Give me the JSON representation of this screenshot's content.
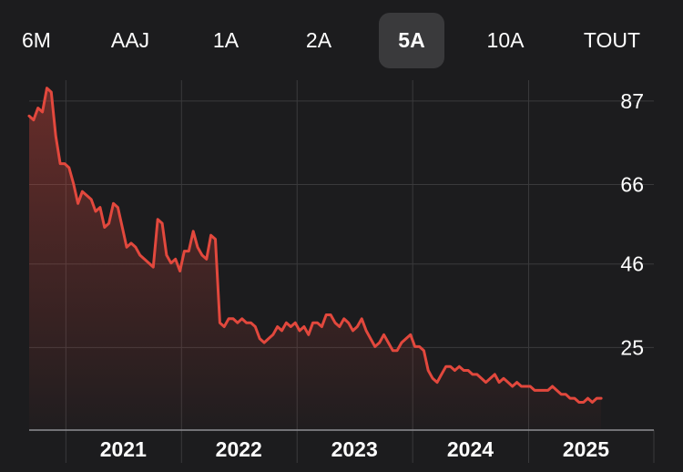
{
  "tabs": [
    {
      "label": "6M",
      "selected": false
    },
    {
      "label": "AAJ",
      "selected": false
    },
    {
      "label": "1A",
      "selected": false
    },
    {
      "label": "2A",
      "selected": false
    },
    {
      "label": "5A",
      "selected": true
    },
    {
      "label": "10A",
      "selected": false
    },
    {
      "label": "TOUT",
      "selected": false
    }
  ],
  "colors": {
    "background": "#1c1c1e",
    "line": "#e2483d",
    "grid": "#3a3a3c",
    "selected_tab": "#3a3a3c"
  },
  "chart_data": {
    "type": "area",
    "title": "",
    "xlabel": "",
    "ylabel": "",
    "ylim": [
      4,
      92
    ],
    "yticks": [
      87,
      66,
      46,
      25
    ],
    "xticks": [
      "2021",
      "2022",
      "2023",
      "2024",
      "2025"
    ],
    "xlim": [
      "2020-09-07",
      "2025-09-01"
    ],
    "grid": true,
    "series": [
      {
        "x": [
          "2020-09-07",
          "2020-09-21",
          "2020-10-05",
          "2020-10-19",
          "2020-11-02",
          "2020-11-16",
          "2020-11-30",
          "2020-12-14",
          "2020-12-28",
          "2021-01-11",
          "2021-01-25",
          "2021-02-08",
          "2021-02-22",
          "2021-03-08",
          "2021-03-22",
          "2021-04-05",
          "2021-04-19",
          "2021-05-03",
          "2021-05-17",
          "2021-05-31",
          "2021-06-14",
          "2021-06-28",
          "2021-07-12",
          "2021-07-26",
          "2021-08-09",
          "2021-08-23",
          "2021-09-06",
          "2021-09-20",
          "2021-10-04",
          "2021-10-18",
          "2021-11-01",
          "2021-11-15",
          "2021-11-29",
          "2021-12-13",
          "2021-12-27",
          "2022-01-10",
          "2022-01-24",
          "2022-02-07",
          "2022-02-21",
          "2022-03-07",
          "2022-03-21",
          "2022-04-04",
          "2022-04-18",
          "2022-05-02",
          "2022-05-16",
          "2022-05-30",
          "2022-06-13",
          "2022-06-27",
          "2022-07-11",
          "2022-07-25",
          "2022-08-08",
          "2022-08-22",
          "2022-09-05",
          "2022-09-19",
          "2022-10-03",
          "2022-10-17",
          "2022-10-31",
          "2022-11-14",
          "2022-11-28",
          "2022-12-12",
          "2022-12-26",
          "2023-01-09",
          "2023-01-23",
          "2023-02-06",
          "2023-02-20",
          "2023-03-06",
          "2023-03-20",
          "2023-04-03",
          "2023-04-17",
          "2023-05-01",
          "2023-05-15",
          "2023-05-29",
          "2023-06-12",
          "2023-06-26",
          "2023-07-10",
          "2023-07-24",
          "2023-08-07",
          "2023-08-21",
          "2023-09-04",
          "2023-09-18",
          "2023-10-02",
          "2023-10-16",
          "2023-10-30",
          "2023-11-13",
          "2023-11-27",
          "2023-12-11",
          "2023-12-25",
          "2024-01-08",
          "2024-01-22",
          "2024-02-05",
          "2024-02-19",
          "2024-03-04",
          "2024-03-18",
          "2024-04-01",
          "2024-04-15",
          "2024-04-29",
          "2024-05-13",
          "2024-05-27",
          "2024-06-10",
          "2024-06-24",
          "2024-07-08",
          "2024-07-22",
          "2024-08-05",
          "2024-08-19",
          "2024-09-02",
          "2024-09-16",
          "2024-09-30",
          "2024-10-14",
          "2024-10-28",
          "2024-11-11",
          "2024-11-25",
          "2024-12-09",
          "2024-12-23",
          "2025-01-06",
          "2025-01-20",
          "2025-02-03",
          "2025-02-17",
          "2025-03-03",
          "2025-03-17",
          "2025-03-31",
          "2025-04-14",
          "2025-04-28",
          "2025-05-12",
          "2025-05-26",
          "2025-06-09",
          "2025-06-23",
          "2025-07-07",
          "2025-07-21",
          "2025-08-04",
          "2025-08-18"
        ],
        "values": [
          83,
          82,
          85,
          84,
          90,
          89,
          78,
          71,
          71,
          70,
          66,
          61,
          64,
          63,
          62,
          59,
          60,
          55,
          56,
          61,
          60,
          55,
          50,
          51,
          50,
          48,
          47,
          46,
          45,
          57,
          56,
          48,
          46,
          47,
          44,
          49,
          49,
          54,
          50,
          48,
          47,
          53,
          52,
          31,
          30,
          32,
          32,
          31,
          32,
          31,
          31,
          30,
          27,
          26,
          27,
          28,
          30,
          29,
          31,
          30,
          31,
          29,
          30,
          28,
          31,
          31,
          30,
          33,
          33,
          31,
          30,
          32,
          31,
          29,
          30,
          32,
          29,
          27,
          25,
          26,
          28,
          26,
          24,
          24,
          26,
          27,
          28,
          25,
          25,
          24,
          19,
          17,
          16,
          18,
          20,
          20,
          19,
          20,
          19,
          19,
          18,
          18,
          17,
          16,
          17,
          18,
          16,
          17,
          16,
          15,
          16,
          15,
          15,
          15,
          14,
          14,
          14,
          14,
          15,
          14,
          13,
          13,
          12,
          12,
          11,
          11,
          12,
          11,
          12,
          12
        ]
      }
    ]
  }
}
